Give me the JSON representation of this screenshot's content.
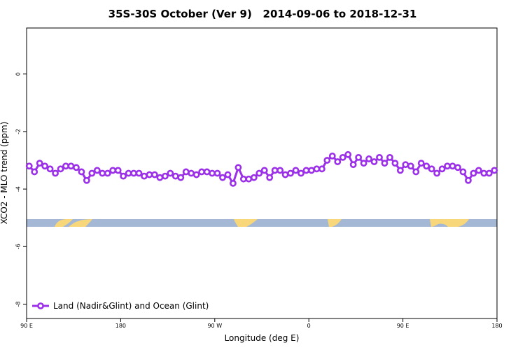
{
  "chart_data": {
    "type": "line",
    "title": "35S-30S October (Ver 9)   2014-09-06 to 2018-12-31",
    "x_label": "Longitude (deg E)",
    "y_label": "XCO2 - MLO trend (ppm)",
    "xlim": [
      90,
      540
    ],
    "ylim": [
      -8.5,
      1.6
    ],
    "xticks": [
      {
        "value": 90,
        "label": "90 E"
      },
      180,
      {
        "value": 270,
        "label": "90 W"
      },
      {
        "value": 360,
        "label": "0"
      },
      {
        "value": 450,
        "label": "90 E"
      },
      {
        "value": 540,
        "label": "180"
      }
    ],
    "yticks": [
      0,
      -2,
      -4,
      -6,
      -8
    ],
    "legend": "bottom-left",
    "x": [
      92.5,
      97.5,
      102.5,
      107.5,
      112.5,
      117.5,
      122.5,
      127.5,
      132.5,
      137.5,
      142.5,
      147.5,
      152.5,
      157.5,
      162.5,
      167.5,
      172.5,
      177.5,
      182.5,
      187.5,
      192.5,
      197.5,
      202.5,
      207.5,
      212.5,
      217.5,
      222.5,
      227.5,
      232.5,
      237.5,
      242.5,
      247.5,
      252.5,
      257.5,
      262.5,
      267.5,
      272.5,
      277.5,
      282.5,
      287.5,
      292.5,
      297.5,
      302.5,
      307.5,
      312.5,
      317.5,
      322.5,
      327.5,
      332.5,
      337.5,
      342.5,
      347.5,
      352.5,
      357.5,
      362.5,
      367.5,
      372.5,
      377.5,
      382.5,
      387.5,
      392.5,
      397.5,
      402.5,
      407.5,
      412.5,
      417.5,
      422.5,
      427.5,
      432.5,
      437.5,
      442.5,
      447.5,
      452.5,
      457.5,
      462.5,
      467.5,
      472.5,
      477.5,
      482.5,
      487.5,
      492.5,
      497.5,
      502.5,
      507.5,
      512.5,
      517.5,
      522.5,
      527.5,
      532.5,
      537.5
    ],
    "series": [
      {
        "name": "Land (Nadir&Glint) and Ocean (Glint)",
        "color": "#9b30e8",
        "values": [
          -3.2,
          -3.4,
          -3.1,
          -3.2,
          -3.3,
          -3.45,
          -3.3,
          -3.2,
          -3.2,
          -3.25,
          -3.4,
          -3.7,
          -3.45,
          -3.35,
          -3.45,
          -3.45,
          -3.35,
          -3.35,
          -3.55,
          -3.45,
          -3.45,
          -3.45,
          -3.55,
          -3.5,
          -3.5,
          -3.6,
          -3.55,
          -3.45,
          -3.55,
          -3.6,
          -3.4,
          -3.45,
          -3.5,
          -3.4,
          -3.4,
          -3.45,
          -3.45,
          -3.6,
          -3.5,
          -3.8,
          -3.25,
          -3.65,
          -3.65,
          -3.6,
          -3.45,
          -3.35,
          -3.6,
          -3.35,
          -3.35,
          -3.5,
          -3.45,
          -3.35,
          -3.45,
          -3.35,
          -3.35,
          -3.3,
          -3.3,
          -3.0,
          -2.85,
          -3.05,
          -2.9,
          -2.8,
          -3.15,
          -2.9,
          -3.1,
          -2.95,
          -3.05,
          -2.9,
          -3.1,
          -2.9,
          -3.1,
          -3.35,
          -3.15,
          -3.2,
          -3.4,
          -3.1,
          -3.2,
          -3.3,
          -3.45,
          -3.3,
          -3.2,
          -3.2,
          -3.25,
          -3.4,
          -3.7,
          -3.45,
          -3.35,
          -3.45,
          -3.45,
          -3.35
        ]
      }
    ]
  }
}
